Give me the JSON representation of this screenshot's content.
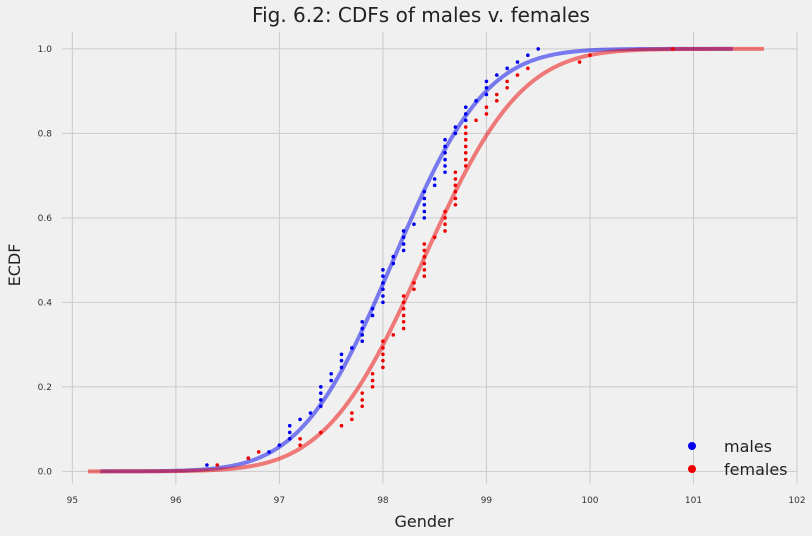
{
  "chart_data": {
    "type": "scatter",
    "title": "Fig. 6.2: CDFs of males v. females",
    "xlabel": "Gender",
    "ylabel": "ECDF",
    "xlim": [
      94.9,
      102.0
    ],
    "ylim": [
      -0.03,
      1.04
    ],
    "xticks": [
      95,
      96,
      97,
      98,
      99,
      100,
      101,
      102
    ],
    "yticks": [
      0.0,
      0.2,
      0.4,
      0.6,
      0.8,
      1.0
    ],
    "grid": true,
    "legend_position": "lower-right",
    "series": [
      {
        "name": "males",
        "color": "#0000ee",
        "points": [
          [
            96.3,
            0.015
          ],
          [
            96.7,
            0.031
          ],
          [
            96.9,
            0.046
          ],
          [
            97.0,
            0.062
          ],
          [
            97.1,
            0.077
          ],
          [
            97.1,
            0.092
          ],
          [
            97.1,
            0.108
          ],
          [
            97.2,
            0.123
          ],
          [
            97.3,
            0.138
          ],
          [
            97.4,
            0.154
          ],
          [
            97.4,
            0.169
          ],
          [
            97.4,
            0.185
          ],
          [
            97.4,
            0.2
          ],
          [
            97.5,
            0.215
          ],
          [
            97.5,
            0.231
          ],
          [
            97.6,
            0.246
          ],
          [
            97.6,
            0.262
          ],
          [
            97.6,
            0.277
          ],
          [
            97.7,
            0.292
          ],
          [
            97.8,
            0.308
          ],
          [
            97.8,
            0.323
          ],
          [
            97.8,
            0.338
          ],
          [
            97.8,
            0.354
          ],
          [
            97.9,
            0.369
          ],
          [
            97.9,
            0.385
          ],
          [
            98.0,
            0.4
          ],
          [
            98.0,
            0.415
          ],
          [
            98.0,
            0.431
          ],
          [
            98.0,
            0.446
          ],
          [
            98.0,
            0.462
          ],
          [
            98.0,
            0.477
          ],
          [
            98.1,
            0.492
          ],
          [
            98.1,
            0.508
          ],
          [
            98.2,
            0.523
          ],
          [
            98.2,
            0.538
          ],
          [
            98.2,
            0.554
          ],
          [
            98.2,
            0.569
          ],
          [
            98.3,
            0.585
          ],
          [
            98.4,
            0.6
          ],
          [
            98.4,
            0.615
          ],
          [
            98.4,
            0.631
          ],
          [
            98.4,
            0.646
          ],
          [
            98.4,
            0.662
          ],
          [
            98.5,
            0.677
          ],
          [
            98.5,
            0.692
          ],
          [
            98.6,
            0.708
          ],
          [
            98.6,
            0.723
          ],
          [
            98.6,
            0.738
          ],
          [
            98.6,
            0.754
          ],
          [
            98.6,
            0.769
          ],
          [
            98.6,
            0.785
          ],
          [
            98.7,
            0.8
          ],
          [
            98.7,
            0.815
          ],
          [
            98.8,
            0.831
          ],
          [
            98.8,
            0.846
          ],
          [
            98.8,
            0.862
          ],
          [
            98.9,
            0.877
          ],
          [
            99.0,
            0.892
          ],
          [
            99.0,
            0.908
          ],
          [
            99.0,
            0.923
          ],
          [
            99.1,
            0.938
          ],
          [
            99.2,
            0.954
          ],
          [
            99.3,
            0.969
          ],
          [
            99.4,
            0.985
          ],
          [
            99.5,
            1.0
          ]
        ],
        "cdf_mean": 98.1,
        "cdf_std": 0.7
      },
      {
        "name": "females",
        "color": "#ee0000",
        "points": [
          [
            96.4,
            0.015
          ],
          [
            96.7,
            0.031
          ],
          [
            96.8,
            0.046
          ],
          [
            97.2,
            0.062
          ],
          [
            97.2,
            0.077
          ],
          [
            97.4,
            0.092
          ],
          [
            97.6,
            0.108
          ],
          [
            97.7,
            0.123
          ],
          [
            97.7,
            0.138
          ],
          [
            97.8,
            0.154
          ],
          [
            97.8,
            0.169
          ],
          [
            97.8,
            0.185
          ],
          [
            97.9,
            0.2
          ],
          [
            97.9,
            0.215
          ],
          [
            97.9,
            0.231
          ],
          [
            98.0,
            0.246
          ],
          [
            98.0,
            0.262
          ],
          [
            98.0,
            0.277
          ],
          [
            98.0,
            0.292
          ],
          [
            98.0,
            0.308
          ],
          [
            98.1,
            0.323
          ],
          [
            98.2,
            0.338
          ],
          [
            98.2,
            0.354
          ],
          [
            98.2,
            0.369
          ],
          [
            98.2,
            0.385
          ],
          [
            98.2,
            0.4
          ],
          [
            98.2,
            0.415
          ],
          [
            98.3,
            0.431
          ],
          [
            98.3,
            0.446
          ],
          [
            98.4,
            0.462
          ],
          [
            98.4,
            0.477
          ],
          [
            98.4,
            0.492
          ],
          [
            98.4,
            0.508
          ],
          [
            98.4,
            0.523
          ],
          [
            98.4,
            0.538
          ],
          [
            98.5,
            0.554
          ],
          [
            98.6,
            0.569
          ],
          [
            98.6,
            0.585
          ],
          [
            98.6,
            0.6
          ],
          [
            98.6,
            0.615
          ],
          [
            98.7,
            0.631
          ],
          [
            98.7,
            0.646
          ],
          [
            98.7,
            0.662
          ],
          [
            98.7,
            0.677
          ],
          [
            98.7,
            0.692
          ],
          [
            98.7,
            0.708
          ],
          [
            98.8,
            0.723
          ],
          [
            98.8,
            0.738
          ],
          [
            98.8,
            0.754
          ],
          [
            98.8,
            0.769
          ],
          [
            98.8,
            0.785
          ],
          [
            98.8,
            0.8
          ],
          [
            98.8,
            0.815
          ],
          [
            98.9,
            0.831
          ],
          [
            99.0,
            0.846
          ],
          [
            99.0,
            0.862
          ],
          [
            99.1,
            0.877
          ],
          [
            99.1,
            0.892
          ],
          [
            99.2,
            0.908
          ],
          [
            99.2,
            0.923
          ],
          [
            99.3,
            0.938
          ],
          [
            99.4,
            0.954
          ],
          [
            99.9,
            0.969
          ],
          [
            100.0,
            0.985
          ],
          [
            100.8,
            1.0
          ]
        ],
        "cdf_mean": 98.39,
        "cdf_std": 0.74
      }
    ]
  }
}
